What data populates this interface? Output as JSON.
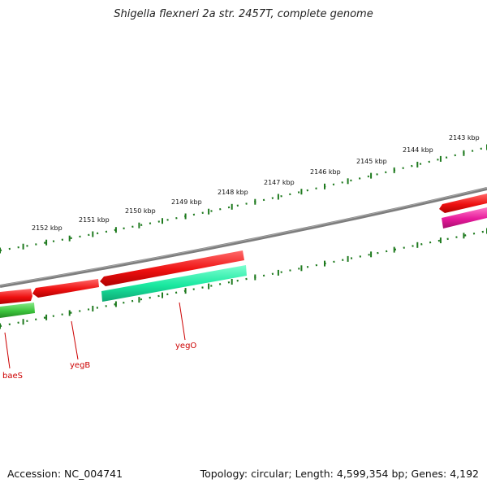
{
  "title": "Shigella flexneri 2a str. 2457T, complete genome",
  "footer": {
    "accession": "Accession: NC_004741",
    "summary": "Topology: circular; Length: 4,599,354 bp; Genes: 4,192"
  },
  "colors": {
    "backbone": "#808080",
    "ticks": "#1e7a1e",
    "cds_red": "#ee1010",
    "cds_teal": "#19e8a0",
    "cds_green": "#3cc43c",
    "cds_magenta": "#e6199a",
    "label": "#cc0000"
  },
  "scale_labels": [
    "2143 kbp",
    "2144 kbp",
    "2145 kbp",
    "2146 kbp",
    "2147 kbp",
    "2148 kbp",
    "2149 kbp",
    "2150 kbp",
    "2151 kbp",
    "2152 kbp"
  ],
  "gene_labels": [
    "yegO",
    "yegB",
    "baeS"
  ]
}
